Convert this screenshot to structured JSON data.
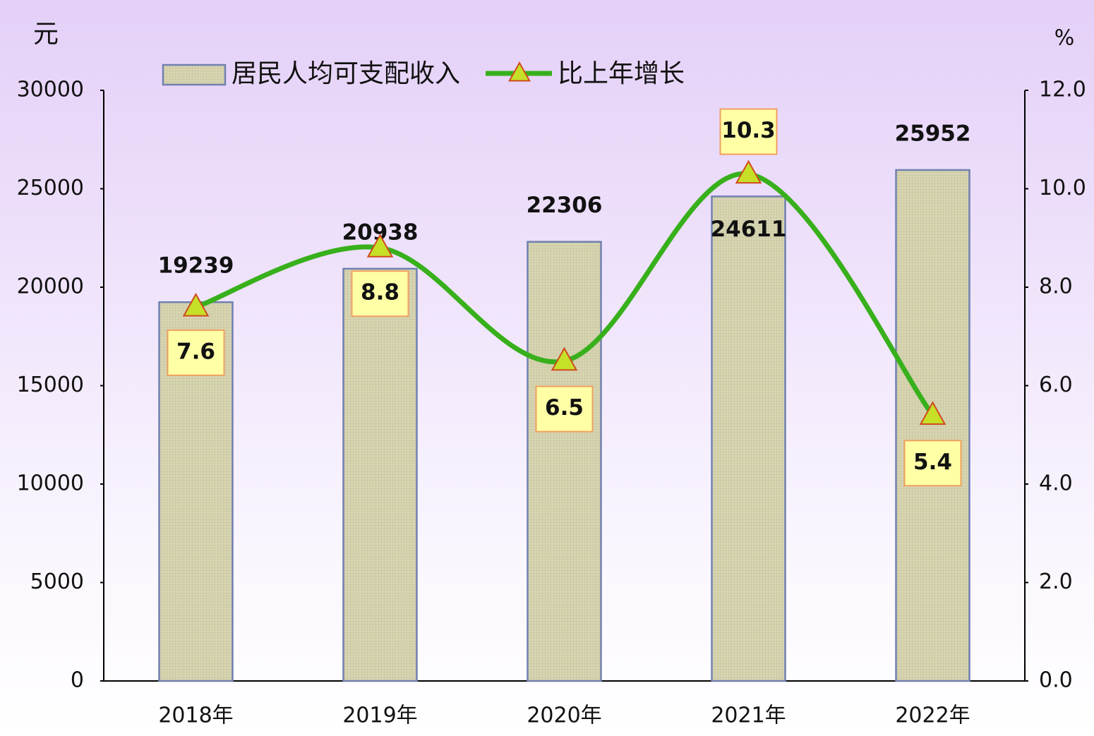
{
  "chart_data": {
    "type": "bar",
    "categories": [
      "2018年",
      "2019年",
      "2020年",
      "2021年",
      "2022年"
    ],
    "y_label": "元",
    "y2_label": "%",
    "ylim": [
      0,
      30000
    ],
    "yticks": [
      0,
      5000,
      10000,
      15000,
      20000,
      25000,
      30000
    ],
    "y2lim": [
      0,
      12
    ],
    "y2ticks": [
      {
        "value": 0,
        "label": "0.0"
      },
      {
        "value": 2,
        "label": "2.0"
      },
      {
        "value": 4,
        "label": "4.0"
      },
      {
        "value": 6,
        "label": "6.0"
      },
      {
        "value": 8,
        "label": "8.0"
      },
      {
        "value": 10,
        "label": "10.0"
      },
      {
        "value": 12,
        "label": "12.0"
      }
    ],
    "series": [
      {
        "name": "居民人均可支配收入",
        "type": "bar",
        "color": "#d8d5b2",
        "values": [
          19239,
          20938,
          22306,
          24611,
          25952
        ]
      },
      {
        "name": "比上年增长",
        "type": "line",
        "axis": "y2",
        "color": "#38b01c",
        "values": [
          7.6,
          8.8,
          6.5,
          10.3,
          5.4
        ]
      }
    ]
  }
}
